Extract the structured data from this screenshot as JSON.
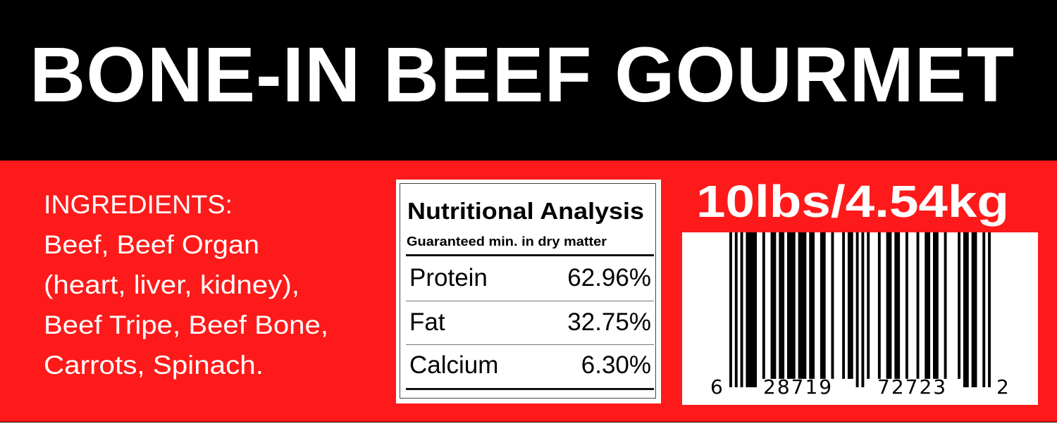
{
  "header": {
    "title": "BONE-IN BEEF GOURMET"
  },
  "ingredients": {
    "lines": [
      "INGREDIENTS:",
      "Beef, Beef Organ",
      "(heart, liver, kidney),",
      "Beef Tripe, Beef Bone,",
      "Carrots, Spinach."
    ]
  },
  "nutrition": {
    "title": "Nutritional Analysis",
    "subtitle": "Guaranteed min. in dry matter",
    "rows": [
      {
        "label": "Protein",
        "value": "62.96%"
      },
      {
        "label": "Fat",
        "value": "32.75%"
      },
      {
        "label": "Calcium",
        "value": "6.30%"
      }
    ]
  },
  "weight": "10lbs/4.54kg",
  "barcode": {
    "type": "UPC-A",
    "digits": "628719727232",
    "groups": [
      "6",
      "28719",
      "72723",
      "2"
    ]
  },
  "colors": {
    "header_bg": "#000000",
    "panel_bg": "#fe1a1a",
    "text": "#ffffff"
  }
}
